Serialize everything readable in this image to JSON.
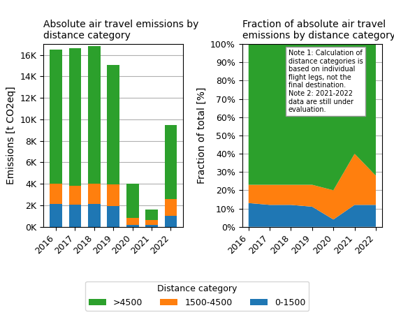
{
  "chart_data": [
    {
      "type": "bar",
      "stacked": true,
      "title": "Absolute air travel emissions by\ndistance category",
      "y_label": "Emissions [t CO2eq]",
      "categories": [
        "2016",
        "2017",
        "2018",
        "2019",
        "2020",
        "2021",
        "2022"
      ],
      "series": [
        {
          "name": "0-1500",
          "values": [
            2100,
            2050,
            2100,
            1950,
            150,
            200,
            1000
          ]
        },
        {
          "name": "1500-4500",
          "values": [
            1900,
            1750,
            1900,
            2000,
            650,
            400,
            1600
          ]
        },
        {
          "name": ">4500",
          "values": [
            12500,
            12800,
            12800,
            11100,
            3200,
            1000,
            6900
          ]
        }
      ],
      "ylim": [
        0,
        17000
      ],
      "yticks": [
        {
          "value": 0,
          "label": "0K"
        },
        {
          "value": 2000,
          "label": "2K"
        },
        {
          "value": 4000,
          "label": "4K"
        },
        {
          "value": 6000,
          "label": "6K"
        },
        {
          "value": 8000,
          "label": "8K"
        },
        {
          "value": 10000,
          "label": "10K"
        },
        {
          "value": 12000,
          "label": "12K"
        },
        {
          "value": 14000,
          "label": "14K"
        },
        {
          "value": 16000,
          "label": "16K"
        }
      ],
      "grid": true,
      "legend": "lower center",
      "legend_title": "Distance category"
    },
    {
      "type": "area",
      "stacked": true,
      "title": "Fraction of absolute air travel\nemissions by distance category",
      "y_label": "Fraction of total [%]",
      "categories": [
        "2016",
        "2017",
        "2018",
        "2019",
        "2020",
        "2021",
        "2022"
      ],
      "series": [
        {
          "name": "0-1500",
          "values": [
            13,
            12,
            12,
            11,
            4,
            12,
            12
          ]
        },
        {
          "name": "1500-4500",
          "values": [
            10,
            11,
            11,
            12,
            16,
            28,
            16
          ]
        },
        {
          "name": ">4500",
          "values": [
            77,
            77,
            77,
            77,
            80,
            60,
            72
          ]
        }
      ],
      "ylim": [
        0,
        100
      ],
      "yticks": [
        {
          "value": 0,
          "label": "0%"
        },
        {
          "value": 10,
          "label": "10%"
        },
        {
          "value": 20,
          "label": "20%"
        },
        {
          "value": 30,
          "label": "30%"
        },
        {
          "value": 40,
          "label": "40%"
        },
        {
          "value": 50,
          "label": "50%"
        },
        {
          "value": 60,
          "label": "60%"
        },
        {
          "value": 70,
          "label": "70%"
        },
        {
          "value": 80,
          "label": "80%"
        },
        {
          "value": 90,
          "label": "90%"
        },
        {
          "value": 100,
          "label": "100%"
        }
      ],
      "grid": true,
      "annotations": [
        {
          "text": "Note 1: Calculation of\ndistance categories is\nbased on individual\nflight legs, not the\nfinal destination.\nNote 2: 2021-2022\ndata are still under\nevaluation."
        }
      ]
    }
  ]
}
